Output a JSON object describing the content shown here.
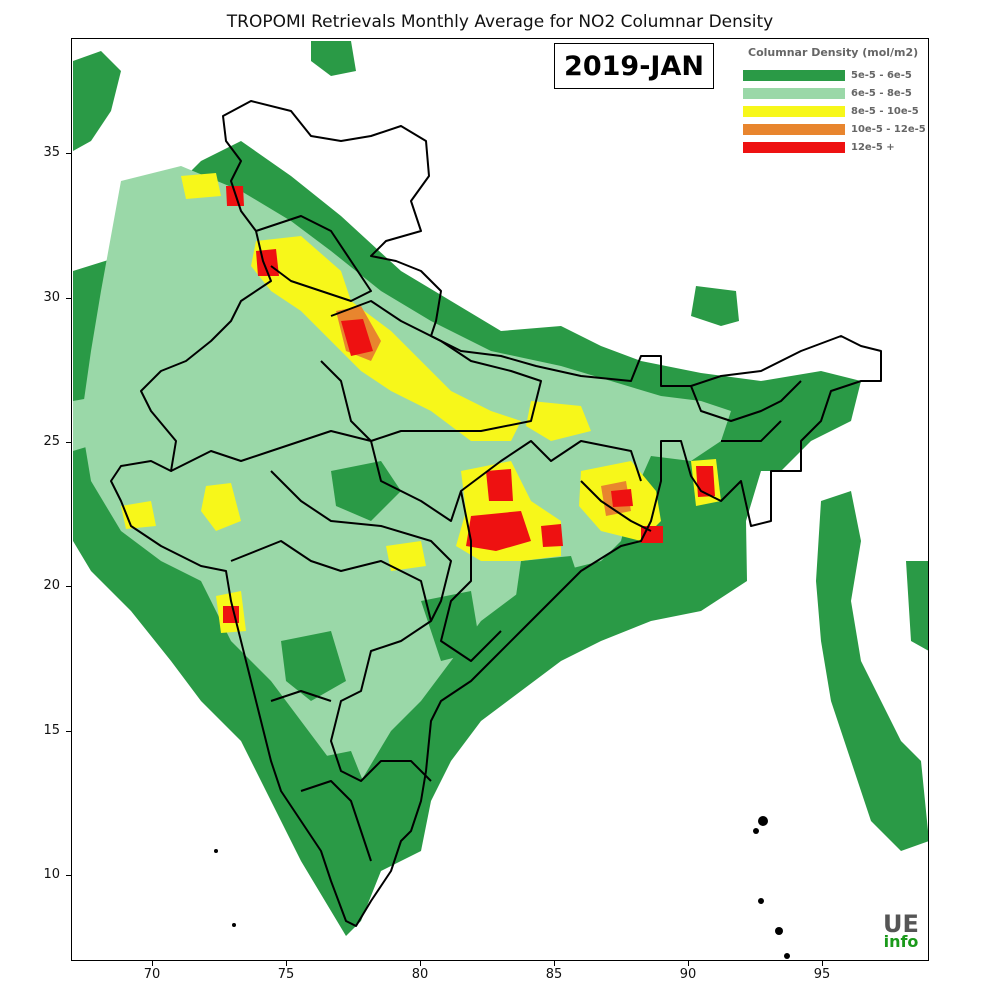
{
  "title": "TROPOMI Retrievals Monthly Average for NO2 Columnar Density",
  "date_label": "2019-JAN",
  "legend": {
    "title": "Columnar Density (mol/m2)",
    "items": [
      {
        "label": "5e-5 - 6e-5",
        "color": "#2a9a46"
      },
      {
        "label": "6e-5 - 8e-5",
        "color": "#9ad8a8"
      },
      {
        "label": "8e-5 - 10e-5",
        "color": "#f7f71a"
      },
      {
        "label": "10e-5 - 12e-5",
        "color": "#e8852e"
      },
      {
        "label": "12e-5 +",
        "color": "#ee1111"
      }
    ]
  },
  "axes": {
    "x_ticks": [
      "70",
      "75",
      "80",
      "85",
      "90",
      "95"
    ],
    "y_ticks": [
      "35",
      "30",
      "25",
      "20",
      "15",
      "10"
    ],
    "lon_range": [
      67,
      99
    ],
    "lat_range": [
      7,
      39
    ]
  },
  "logo": {
    "top": "UE",
    "bottom": "info"
  },
  "colors": {
    "boundary": "#000000",
    "background": "#ffffff"
  }
}
